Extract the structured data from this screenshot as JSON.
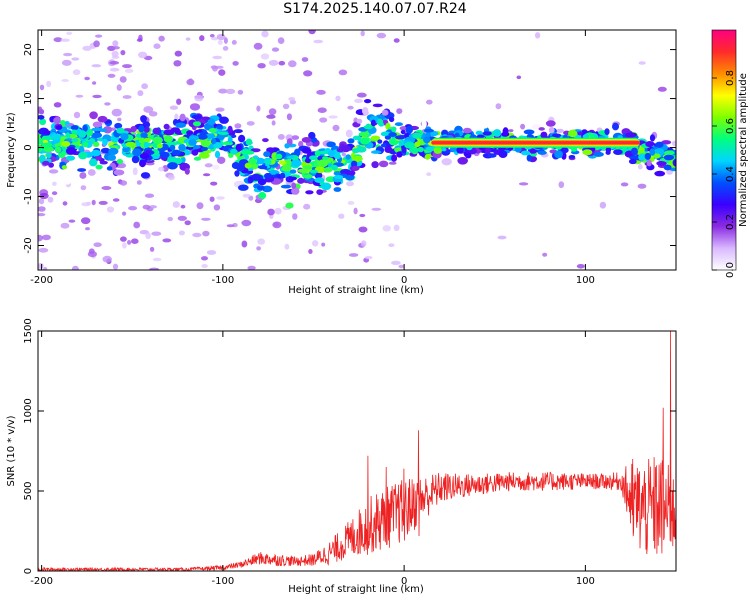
{
  "title": "S174.2025.140.07.07.R24",
  "colors": {
    "axis": "#000000",
    "snr_line": "#ee2222"
  },
  "chart_data": [
    {
      "type": "heatmap",
      "xlabel": "Height of straight line (km)",
      "ylabel": "Frequency (Hz)",
      "xlim": [
        -202,
        150
      ],
      "ylim": [
        -25,
        24
      ],
      "xticks": [
        -200,
        -100,
        0,
        100
      ],
      "yticks": [
        -20,
        -10,
        0,
        10,
        20
      ],
      "colorbar": {
        "label": "Normalized spectral amplitude",
        "range": [
          0,
          1
        ],
        "ticks": [
          0.0,
          0.2,
          0.4,
          0.6,
          0.8
        ],
        "colors": [
          "#ffffff",
          "#d9b8ff",
          "#8a2be2",
          "#3a00ff",
          "#0050ff",
          "#00d5ff",
          "#00ff7f",
          "#7fff00",
          "#ffff00",
          "#ff8c00",
          "#ff2b2b",
          "#ff0080"
        ]
      },
      "ridge": {
        "x": [
          -200,
          -180,
          -160,
          -140,
          -120,
          -100,
          -90,
          -80,
          -70,
          -60,
          -50,
          -40,
          -30,
          -20,
          -10,
          0,
          20,
          40,
          60,
          80,
          100,
          120,
          135,
          150
        ],
        "y": [
          1,
          1,
          0,
          1,
          1,
          2,
          -2,
          -5,
          -3,
          -4,
          -4,
          -4,
          -3,
          3,
          2,
          1,
          1,
          1,
          1,
          1,
          1,
          1,
          -1,
          -2
        ]
      },
      "strong_band": {
        "x_start": 15,
        "x_end": 130,
        "frequency": 1
      }
    },
    {
      "type": "line",
      "xlabel": "Height of straight line (km)",
      "ylabel": "SNR (10 * v/v)",
      "xlim": [
        -202,
        150
      ],
      "ylim": [
        0,
        1500
      ],
      "xticks": [
        -200,
        -100,
        0,
        100
      ],
      "yticks": [
        0,
        500,
        1000,
        1500
      ],
      "envelope": {
        "x": [
          -202,
          -160,
          -120,
          -100,
          -90,
          -80,
          -70,
          -60,
          -50,
          -40,
          -30,
          -20,
          -10,
          0,
          10,
          20,
          30,
          40,
          60,
          80,
          100,
          110,
          120,
          125,
          130,
          135,
          140,
          145,
          150
        ],
        "mean": [
          10,
          10,
          10,
          20,
          40,
          80,
          70,
          60,
          70,
          120,
          200,
          280,
          330,
          380,
          450,
          520,
          530,
          540,
          560,
          560,
          560,
          560,
          560,
          450,
          400,
          380,
          400,
          380,
          350
        ],
        "spread": [
          10,
          10,
          10,
          15,
          20,
          40,
          40,
          30,
          40,
          80,
          120,
          180,
          200,
          200,
          150,
          100,
          80,
          70,
          60,
          60,
          50,
          50,
          60,
          250,
          300,
          320,
          350,
          300,
          250
        ]
      },
      "peaks": [
        {
          "x": 147,
          "y": 1500
        },
        {
          "x": 143,
          "y": 1020
        },
        {
          "x": 8,
          "y": 880
        },
        {
          "x": -20,
          "y": 720
        },
        {
          "x": -10,
          "y": 650
        },
        {
          "x": 0,
          "y": 640
        },
        {
          "x": 126,
          "y": 700
        }
      ]
    }
  ]
}
